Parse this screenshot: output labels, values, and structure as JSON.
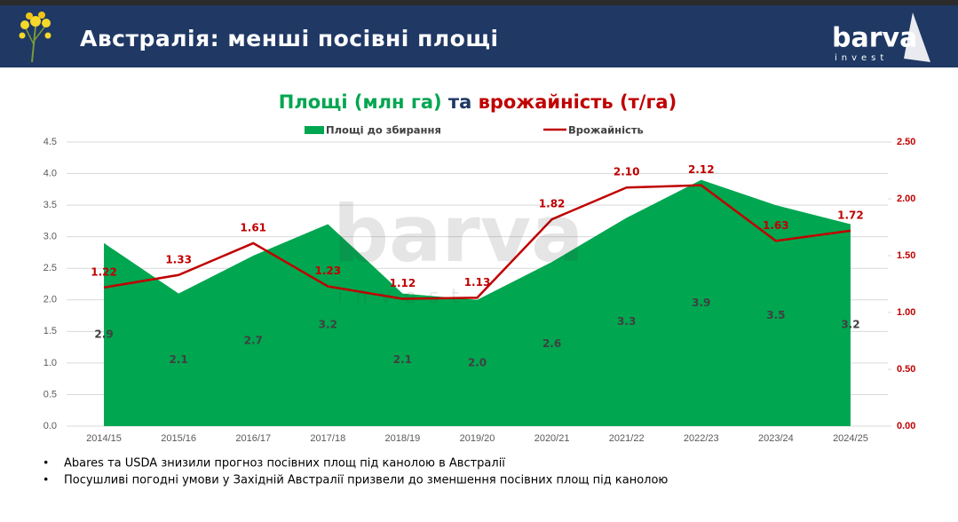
{
  "header": {
    "title": "Австралія: менші посівні площі",
    "logo": {
      "name": "barva",
      "tagline": "invest"
    }
  },
  "chart_data": {
    "type": "combo",
    "title": [
      {
        "text": "Площі (млн га)",
        "color": "#00a650"
      },
      {
        "text": "та",
        "color": "#1f3864"
      },
      {
        "text": "врожайність (т/га)",
        "color": "#c00000"
      }
    ],
    "categories": [
      "2014/15",
      "2015/16",
      "2016/17",
      "2017/18",
      "2018/19",
      "2019/20",
      "2020/21",
      "2021/22",
      "2022/23",
      "2023/24",
      "2024/25"
    ],
    "series": [
      {
        "name": "Площі до збирання",
        "type": "area",
        "color": "#00a650",
        "axis": "y",
        "values": [
          2.9,
          2.1,
          2.7,
          3.2,
          2.1,
          2.0,
          2.6,
          3.3,
          3.9,
          3.5,
          3.2
        ],
        "value_labels": [
          "2.9",
          "2.1",
          "2.7",
          "3.2",
          "2.1",
          "2.0",
          "2.6",
          "3.3",
          "3.9",
          "3.5",
          "3.2"
        ]
      },
      {
        "name": "Врожайність",
        "type": "line",
        "color": "#c00000",
        "axis": "y2",
        "values": [
          1.22,
          1.33,
          1.61,
          1.23,
          1.12,
          1.13,
          1.82,
          2.1,
          2.12,
          1.63,
          1.72
        ],
        "value_labels": [
          "1.22",
          "1.33",
          "1.61",
          "1.23",
          "1.12",
          "1.13",
          "1.82",
          "2.10",
          "2.12",
          "1.63",
          "1.72"
        ]
      }
    ],
    "ylim": [
      0,
      4.5
    ],
    "yticks": [
      {
        "value": 0,
        "label": "0.0"
      },
      0.5,
      {
        "value": 1,
        "label": "1.0"
      },
      1.5,
      {
        "value": 2,
        "label": "2.0"
      },
      2.5,
      {
        "value": 3,
        "label": "3.0"
      },
      3.5,
      {
        "value": 4,
        "label": "4.0"
      },
      4.5
    ],
    "y2lim": [
      0,
      2.5
    ],
    "y2ticks": [
      {
        "value": 0,
        "label": "0.00"
      },
      {
        "value": 0.5,
        "label": "0.50"
      },
      {
        "value": 1,
        "label": "1.00"
      },
      {
        "value": 1.5,
        "label": "1.50"
      },
      {
        "value": 2,
        "label": "2.00"
      },
      {
        "value": 2.5,
        "label": "2.50"
      }
    ],
    "grid": true,
    "legend": "top"
  },
  "bullets": [
    "Abares та USDA знизили прогноз посівних площ під канолою в Австралії",
    "Посушливі погодні умови у Західній Австралії призвели до зменшення посівних площ під канолою"
  ]
}
